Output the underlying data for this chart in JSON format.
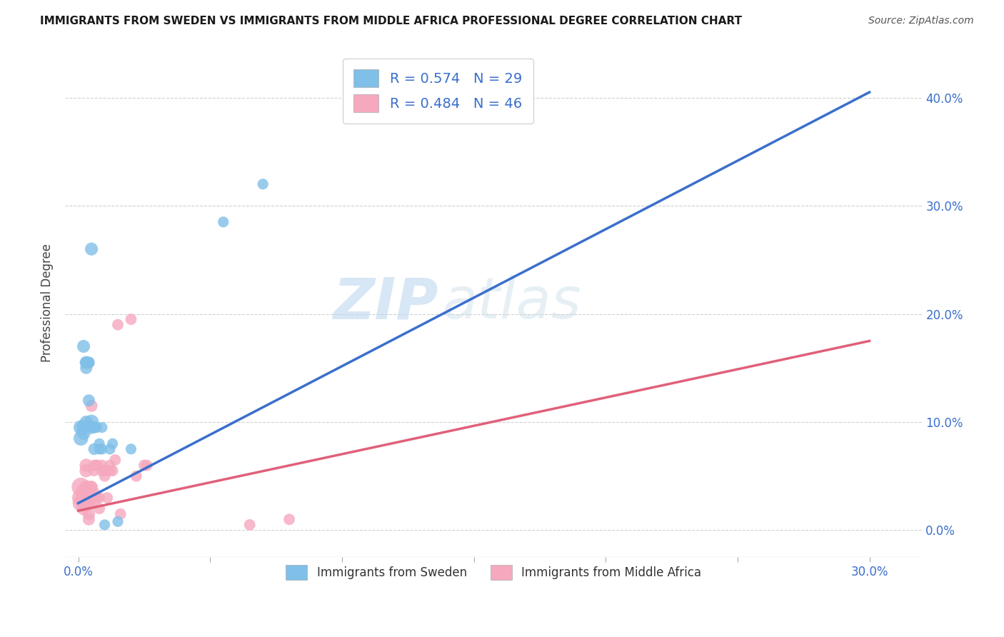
{
  "title": "IMMIGRANTS FROM SWEDEN VS IMMIGRANTS FROM MIDDLE AFRICA PROFESSIONAL DEGREE CORRELATION CHART",
  "source": "Source: ZipAtlas.com",
  "xlabel_ticks": [
    "0.0%",
    "",
    "",
    "",
    "",
    "",
    "30.0%"
  ],
  "xlabel_vals": [
    0.0,
    0.05,
    0.1,
    0.15,
    0.2,
    0.25,
    0.3
  ],
  "ylabel_ticks_left": [
    "",
    "",
    "",
    "",
    ""
  ],
  "ylabel_ticks_right": [
    "0.0%",
    "10.0%",
    "20.0%",
    "30.0%",
    "40.0%"
  ],
  "ylabel_vals": [
    0.0,
    0.1,
    0.2,
    0.3,
    0.4
  ],
  "ylabel_label": "Professional Degree",
  "xmin": -0.005,
  "xmax": 0.32,
  "ymin": -0.025,
  "ymax": 0.445,
  "blue_color": "#7fbfe8",
  "blue_line_color": "#3a6fcc",
  "pink_color": "#f5a8be",
  "pink_line_color": "#e0607a",
  "legend_blue_label": "R = 0.574   N = 29",
  "legend_pink_label": "R = 0.484   N = 46",
  "legend_label_blue": "Immigrants from Sweden",
  "legend_label_pink": "Immigrants from Middle Africa",
  "watermark_zip": "ZIP",
  "watermark_atlas": "atlas",
  "grid_color": "#d0d0d0",
  "background_color": "#ffffff",
  "blue_line_x": [
    0.0,
    0.3
  ],
  "blue_line_y": [
    0.025,
    0.405
  ],
  "pink_line_x": [
    0.0,
    0.3
  ],
  "pink_line_y": [
    0.018,
    0.175
  ],
  "blue_scatter": [
    [
      0.001,
      0.095
    ],
    [
      0.001,
      0.085
    ],
    [
      0.002,
      0.09
    ],
    [
      0.002,
      0.095
    ],
    [
      0.002,
      0.17
    ],
    [
      0.003,
      0.155
    ],
    [
      0.003,
      0.155
    ],
    [
      0.003,
      0.15
    ],
    [
      0.003,
      0.1
    ],
    [
      0.004,
      0.12
    ],
    [
      0.004,
      0.155
    ],
    [
      0.004,
      0.155
    ],
    [
      0.005,
      0.26
    ],
    [
      0.005,
      0.1
    ],
    [
      0.005,
      0.095
    ],
    [
      0.006,
      0.075
    ],
    [
      0.006,
      0.095
    ],
    [
      0.007,
      0.095
    ],
    [
      0.008,
      0.075
    ],
    [
      0.008,
      0.08
    ],
    [
      0.009,
      0.075
    ],
    [
      0.009,
      0.095
    ],
    [
      0.01,
      0.005
    ],
    [
      0.012,
      0.075
    ],
    [
      0.013,
      0.08
    ],
    [
      0.015,
      0.008
    ],
    [
      0.02,
      0.075
    ],
    [
      0.055,
      0.285
    ],
    [
      0.07,
      0.32
    ]
  ],
  "pink_scatter": [
    [
      0.001,
      0.04
    ],
    [
      0.001,
      0.03
    ],
    [
      0.001,
      0.025
    ],
    [
      0.002,
      0.035
    ],
    [
      0.002,
      0.025
    ],
    [
      0.002,
      0.03
    ],
    [
      0.002,
      0.03
    ],
    [
      0.002,
      0.02
    ],
    [
      0.003,
      0.025
    ],
    [
      0.003,
      0.04
    ],
    [
      0.003,
      0.055
    ],
    [
      0.003,
      0.06
    ],
    [
      0.004,
      0.025
    ],
    [
      0.004,
      0.015
    ],
    [
      0.004,
      0.01
    ],
    [
      0.004,
      0.04
    ],
    [
      0.005,
      0.115
    ],
    [
      0.005,
      0.025
    ],
    [
      0.005,
      0.04
    ],
    [
      0.005,
      0.04
    ],
    [
      0.006,
      0.06
    ],
    [
      0.006,
      0.035
    ],
    [
      0.006,
      0.055
    ],
    [
      0.007,
      0.06
    ],
    [
      0.007,
      0.03
    ],
    [
      0.007,
      0.06
    ],
    [
      0.007,
      0.03
    ],
    [
      0.008,
      0.02
    ],
    [
      0.008,
      0.03
    ],
    [
      0.009,
      0.055
    ],
    [
      0.009,
      0.06
    ],
    [
      0.01,
      0.05
    ],
    [
      0.01,
      0.055
    ],
    [
      0.011,
      0.03
    ],
    [
      0.012,
      0.055
    ],
    [
      0.012,
      0.06
    ],
    [
      0.013,
      0.055
    ],
    [
      0.014,
      0.065
    ],
    [
      0.015,
      0.19
    ],
    [
      0.016,
      0.015
    ],
    [
      0.02,
      0.195
    ],
    [
      0.022,
      0.05
    ],
    [
      0.025,
      0.06
    ],
    [
      0.026,
      0.06
    ],
    [
      0.065,
      0.005
    ],
    [
      0.08,
      0.01
    ]
  ],
  "blue_sizes": [
    220,
    220,
    200,
    220,
    170,
    170,
    150,
    150,
    170,
    150,
    140,
    140,
    170,
    220,
    170,
    140,
    140,
    120,
    120,
    120,
    120,
    120,
    120,
    120,
    120,
    120,
    120,
    120,
    120
  ],
  "pink_sizes": [
    350,
    320,
    280,
    280,
    240,
    240,
    210,
    180,
    180,
    180,
    180,
    180,
    160,
    160,
    150,
    150,
    150,
    150,
    150,
    150,
    130,
    130,
    130,
    130,
    130,
    130,
    130,
    130,
    130,
    130,
    130,
    130,
    130,
    130,
    130,
    130,
    130,
    130,
    130,
    130,
    130,
    130,
    130,
    130,
    130,
    130
  ]
}
